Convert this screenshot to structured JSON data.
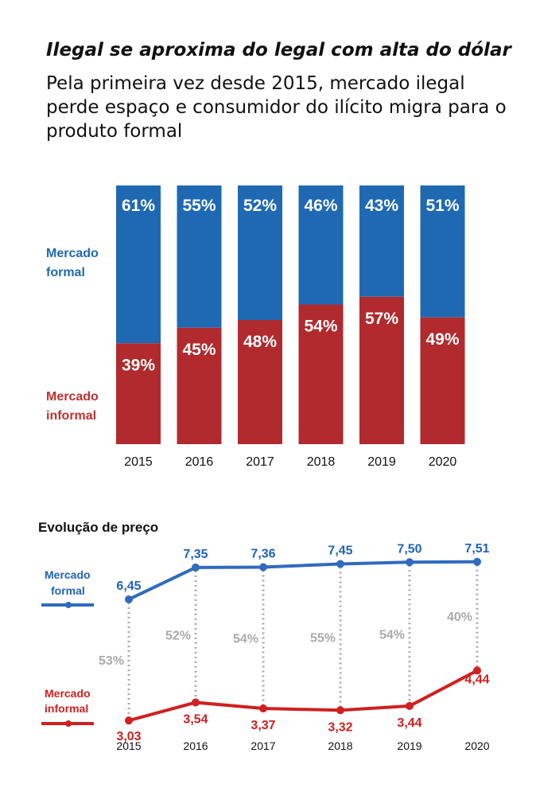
{
  "header": {
    "title": "Ilegal se aproxima do legal com alta do dólar",
    "subtitle": "Pela primeira vez desde 2015, mercado ilegal perde espaço e consumidor do ilícito migra para o produto formal"
  },
  "colors": {
    "formal_bar": "#1f69b3",
    "informal_bar": "#b02a2e",
    "formal_line": "#2f6bbf",
    "informal_line": "#d02020",
    "dotted_connector": "#aaaaaa"
  },
  "chart_data": [
    {
      "type": "bar",
      "stacked": true,
      "percent_stacked": true,
      "categories": [
        "2015",
        "2016",
        "2017",
        "2018",
        "2019",
        "2020"
      ],
      "ylim": [
        0,
        100
      ],
      "series": [
        {
          "name": "Mercado formal",
          "values": [
            61,
            55,
            52,
            46,
            43,
            51
          ],
          "labels": [
            "61%",
            "55%",
            "52%",
            "46%",
            "43%",
            "51%"
          ]
        },
        {
          "name": "Mercado informal",
          "values": [
            39,
            45,
            48,
            54,
            57,
            49
          ],
          "labels": [
            "39%",
            "45%",
            "48%",
            "54%",
            "57%",
            "49%"
          ]
        }
      ],
      "legend": [
        "Mercado formal",
        "Mercado informal"
      ],
      "legend_lines": {
        "formal": [
          "Mercado",
          "formal"
        ],
        "informal": [
          "Mercado",
          "informal"
        ]
      },
      "legend_position": "left",
      "grid": false
    },
    {
      "type": "line",
      "title": "Evolução de preço",
      "x": [
        "2015",
        "2016",
        "2017",
        "2018",
        "2019",
        "2020"
      ],
      "ylim": [
        2,
        8
      ],
      "series": [
        {
          "name": "Mercado formal",
          "values": [
            6.45,
            7.35,
            7.36,
            7.45,
            7.5,
            7.51
          ],
          "labels": [
            "6,45",
            "7,35",
            "7,36",
            "7,45",
            "7,50",
            "7,51"
          ]
        },
        {
          "name": "Mercado informal",
          "values": [
            3.03,
            3.54,
            3.37,
            3.32,
            3.44,
            4.44
          ],
          "labels": [
            "3,03",
            "3,54",
            "3,37",
            "3,32",
            "3,44",
            "4,44"
          ]
        }
      ],
      "annotations": [
        "53%",
        "52%",
        "54%",
        "55%",
        "54%",
        "40%"
      ],
      "legend": [
        "Mercado formal",
        "Mercado informal"
      ],
      "legend_lines": {
        "formal": [
          "Mercado",
          "formal"
        ],
        "informal": [
          "Mercado",
          "informal"
        ]
      },
      "legend_position": "left",
      "grid": false
    }
  ]
}
